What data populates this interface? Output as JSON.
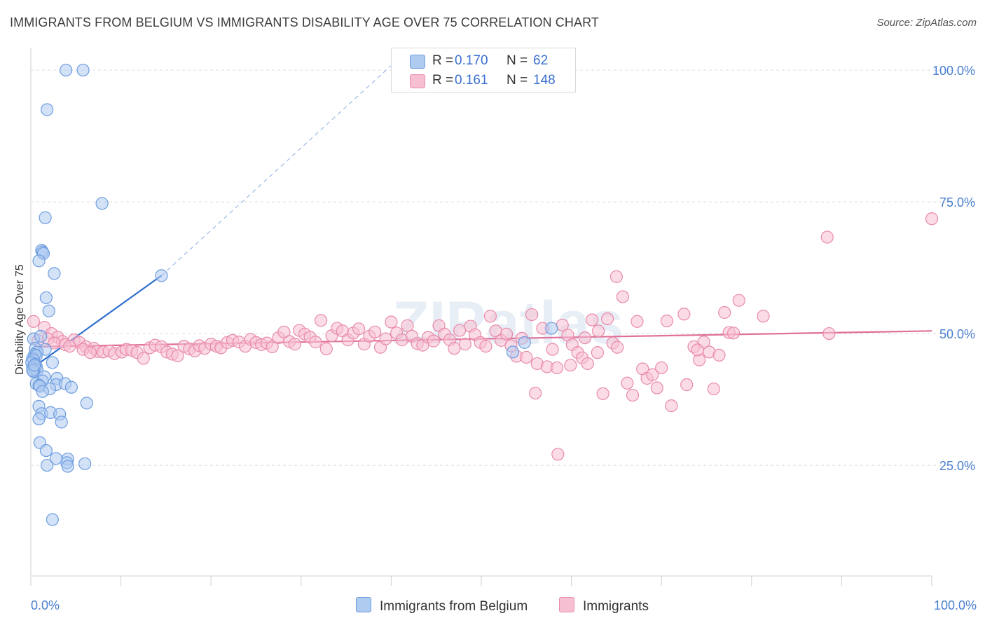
{
  "title": "IMMIGRANTS FROM BELGIUM VS IMMIGRANTS DISABILITY AGE OVER 75 CORRELATION CHART",
  "source": "Source: ZipAtlas.com",
  "watermark": "ZIPatlas",
  "legend": {
    "rows": [
      {
        "r_label": "R =",
        "r_value": "0.170",
        "n_label": "N =",
        "n_value": "62",
        "color": "#aecbf0",
        "border": "#6d9de0"
      },
      {
        "r_label": "R =",
        "r_value": "0.161",
        "n_label": "N =",
        "n_value": "148",
        "color": "#f7c0d2",
        "border": "#e88aaa"
      }
    ]
  },
  "bottom_legend": {
    "items": [
      {
        "label": "Immigrants from Belgium",
        "color": "#aecbf0",
        "border": "#6d9de0"
      },
      {
        "label": "Immigrants",
        "color": "#f7c0d2",
        "border": "#e88aaa"
      }
    ]
  },
  "chart_data": {
    "type": "scatter",
    "title": "IMMIGRANTS FROM BELGIUM VS IMMIGRANTS DISABILITY AGE OVER 75 CORRELATION CHART",
    "xlabel": "",
    "ylabel": "Disability Age Over 75",
    "xlim": [
      0,
      100
    ],
    "ylim": [
      4,
      104
    ],
    "x_tick_labels": [
      "0.0%",
      "100.0%"
    ],
    "y_ticks": [
      25,
      50,
      75,
      100
    ],
    "y_tick_labels": [
      "25.0%",
      "50.0%",
      "75.0%",
      "100.0%"
    ],
    "grid": true,
    "legend_position": "top-center",
    "series": [
      {
        "name": "Immigrants from Belgium",
        "color": "#6d9de0",
        "fill": "#aecbf0",
        "trend": {
          "x": [
            0.2,
            14.5
          ],
          "y": [
            43.5,
            61.0
          ],
          "extended_to": [
            42.0,
            104.0
          ],
          "color": "#2f6fd0"
        },
        "points": [
          [
            3.9,
            100.0
          ],
          [
            5.8,
            100.0
          ],
          [
            1.8,
            92.5
          ],
          [
            7.9,
            74.7
          ],
          [
            1.6,
            72.0
          ],
          [
            1.2,
            65.8
          ],
          [
            1.3,
            65.5
          ],
          [
            1.4,
            65.2
          ],
          [
            0.9,
            63.8
          ],
          [
            2.6,
            61.4
          ],
          [
            14.5,
            61.0
          ],
          [
            1.7,
            56.8
          ],
          [
            2.0,
            54.3
          ],
          [
            0.3,
            49.0
          ],
          [
            1.1,
            49.5
          ],
          [
            0.5,
            47.2
          ],
          [
            1.6,
            47.0
          ],
          [
            0.7,
            46.5
          ],
          [
            0.4,
            46.0
          ],
          [
            0.2,
            45.3
          ],
          [
            0.6,
            45.8
          ],
          [
            0.3,
            45.0
          ],
          [
            0.1,
            44.5
          ],
          [
            0.5,
            44.2
          ],
          [
            0.6,
            43.8
          ],
          [
            0.2,
            43.5
          ],
          [
            0.4,
            43.2
          ],
          [
            0.7,
            43.0
          ],
          [
            0.3,
            42.8
          ],
          [
            2.4,
            44.5
          ],
          [
            1.5,
            41.8
          ],
          [
            2.9,
            41.5
          ],
          [
            1.3,
            41.0
          ],
          [
            0.6,
            40.5
          ],
          [
            0.9,
            40.2
          ],
          [
            2.8,
            40.3
          ],
          [
            3.8,
            40.5
          ],
          [
            1.0,
            40.0
          ],
          [
            2.1,
            39.5
          ],
          [
            4.5,
            39.8
          ],
          [
            1.3,
            39.0
          ],
          [
            6.2,
            36.8
          ],
          [
            0.9,
            36.2
          ],
          [
            1.2,
            34.8
          ],
          [
            2.2,
            35.0
          ],
          [
            3.2,
            34.7
          ],
          [
            0.9,
            33.8
          ],
          [
            3.4,
            33.2
          ],
          [
            1.0,
            29.3
          ],
          [
            1.7,
            27.8
          ],
          [
            2.8,
            26.3
          ],
          [
            4.1,
            26.2
          ],
          [
            4.0,
            25.5
          ],
          [
            1.8,
            25.0
          ],
          [
            4.1,
            24.8
          ],
          [
            6.0,
            25.3
          ],
          [
            2.4,
            14.7
          ],
          [
            57.8,
            51.0
          ],
          [
            54.8,
            48.3
          ],
          [
            53.5,
            46.5
          ],
          [
            0.2,
            43.0
          ],
          [
            0.4,
            44.0
          ]
        ]
      },
      {
        "name": "Immigrants",
        "color": "#e88aaa",
        "fill": "#f7c0d2",
        "trend": {
          "x": [
            0.5,
            100.0
          ],
          "y": [
            47.5,
            50.5
          ],
          "color": "#e0709a"
        },
        "points": [
          [
            0.3,
            52.3
          ],
          [
            1.5,
            51.2
          ],
          [
            2.3,
            50.0
          ],
          [
            3.0,
            49.3
          ],
          [
            1.9,
            49.0
          ],
          [
            0.8,
            48.7
          ],
          [
            3.5,
            48.5
          ],
          [
            4.8,
            48.8
          ],
          [
            5.4,
            48.3
          ],
          [
            2.6,
            48.2
          ],
          [
            3.8,
            47.9
          ],
          [
            4.3,
            47.6
          ],
          [
            6.1,
            47.5
          ],
          [
            5.8,
            47.0
          ],
          [
            7.0,
            47.2
          ],
          [
            7.4,
            46.6
          ],
          [
            6.6,
            46.4
          ],
          [
            8.0,
            46.5
          ],
          [
            8.7,
            46.7
          ],
          [
            9.3,
            46.2
          ],
          [
            10.1,
            46.5
          ],
          [
            10.6,
            47.0
          ],
          [
            11.2,
            46.8
          ],
          [
            11.8,
            46.4
          ],
          [
            12.5,
            45.3
          ],
          [
            13.2,
            47.3
          ],
          [
            13.8,
            47.8
          ],
          [
            14.5,
            47.5
          ],
          [
            15.1,
            46.5
          ],
          [
            15.7,
            46.1
          ],
          [
            16.3,
            45.8
          ],
          [
            17.0,
            47.6
          ],
          [
            17.6,
            47.1
          ],
          [
            18.2,
            46.7
          ],
          [
            18.7,
            47.7
          ],
          [
            19.3,
            47.2
          ],
          [
            20.0,
            48.0
          ],
          [
            20.6,
            47.6
          ],
          [
            21.1,
            47.3
          ],
          [
            21.8,
            48.3
          ],
          [
            22.4,
            48.7
          ],
          [
            23.1,
            48.4
          ],
          [
            23.8,
            47.6
          ],
          [
            24.4,
            48.9
          ],
          [
            25.0,
            48.3
          ],
          [
            25.6,
            47.9
          ],
          [
            26.2,
            48.2
          ],
          [
            26.8,
            47.5
          ],
          [
            27.5,
            49.2
          ],
          [
            28.1,
            50.3
          ],
          [
            28.7,
            48.5
          ],
          [
            29.3,
            48.0
          ],
          [
            29.8,
            50.6
          ],
          [
            30.4,
            49.9
          ],
          [
            31.0,
            49.3
          ],
          [
            31.6,
            48.4
          ],
          [
            32.2,
            52.5
          ],
          [
            32.8,
            47.1
          ],
          [
            33.4,
            49.6
          ],
          [
            34.0,
            51.0
          ],
          [
            34.6,
            50.5
          ],
          [
            35.2,
            48.8
          ],
          [
            35.8,
            50.1
          ],
          [
            36.4,
            50.9
          ],
          [
            37.0,
            48.0
          ],
          [
            37.6,
            49.5
          ],
          [
            38.2,
            50.3
          ],
          [
            38.8,
            47.4
          ],
          [
            39.4,
            49.0
          ],
          [
            40.0,
            52.2
          ],
          [
            40.6,
            50.1
          ],
          [
            41.2,
            48.8
          ],
          [
            41.8,
            51.5
          ],
          [
            42.3,
            49.5
          ],
          [
            42.9,
            48.1
          ],
          [
            43.5,
            47.8
          ],
          [
            44.1,
            49.3
          ],
          [
            44.7,
            48.6
          ],
          [
            45.3,
            51.5
          ],
          [
            45.9,
            49.9
          ],
          [
            46.5,
            48.8
          ],
          [
            47.0,
            47.2
          ],
          [
            47.6,
            50.6
          ],
          [
            48.2,
            48.0
          ],
          [
            48.8,
            51.4
          ],
          [
            49.3,
            49.8
          ],
          [
            49.9,
            48.3
          ],
          [
            50.5,
            47.6
          ],
          [
            51.0,
            53.3
          ],
          [
            51.6,
            50.5
          ],
          [
            52.2,
            48.7
          ],
          [
            52.8,
            49.9
          ],
          [
            53.3,
            47.7
          ],
          [
            53.9,
            45.7
          ],
          [
            54.5,
            49.1
          ],
          [
            55.0,
            45.5
          ],
          [
            55.6,
            53.6
          ],
          [
            56.2,
            44.3
          ],
          [
            56.8,
            51.0
          ],
          [
            57.3,
            43.7
          ],
          [
            57.9,
            47.0
          ],
          [
            58.4,
            43.5
          ],
          [
            59.0,
            51.6
          ],
          [
            59.6,
            49.7
          ],
          [
            60.1,
            47.9
          ],
          [
            60.7,
            46.4
          ],
          [
            61.2,
            45.4
          ],
          [
            61.8,
            44.3
          ],
          [
            62.3,
            52.6
          ],
          [
            62.9,
            46.4
          ],
          [
            63.5,
            38.6
          ],
          [
            64.0,
            52.8
          ],
          [
            64.6,
            48.2
          ],
          [
            65.1,
            47.4
          ],
          [
            65.7,
            57.0
          ],
          [
            66.2,
            40.6
          ],
          [
            66.8,
            38.3
          ],
          [
            67.3,
            52.3
          ],
          [
            67.9,
            43.3
          ],
          [
            68.4,
            41.5
          ],
          [
            69.0,
            42.2
          ],
          [
            69.5,
            39.7
          ],
          [
            70.0,
            43.5
          ],
          [
            70.6,
            52.4
          ],
          [
            71.1,
            36.3
          ],
          [
            72.5,
            53.7
          ],
          [
            72.8,
            40.3
          ],
          [
            73.6,
            47.5
          ],
          [
            74.2,
            45.0
          ],
          [
            74.7,
            48.4
          ],
          [
            75.3,
            46.5
          ],
          [
            75.8,
            39.5
          ],
          [
            76.4,
            45.9
          ],
          [
            77.0,
            54.0
          ],
          [
            77.5,
            50.2
          ],
          [
            78.0,
            50.1
          ],
          [
            78.6,
            56.3
          ],
          [
            81.3,
            53.3
          ],
          [
            65.0,
            60.8
          ],
          [
            56.0,
            38.7
          ],
          [
            58.5,
            27.1
          ],
          [
            88.4,
            68.3
          ],
          [
            88.6,
            50.0
          ],
          [
            100.0,
            71.8
          ],
          [
            74.0,
            46.9
          ],
          [
            59.9,
            44.0
          ],
          [
            61.5,
            49.2
          ],
          [
            63.0,
            50.5
          ]
        ]
      }
    ]
  }
}
